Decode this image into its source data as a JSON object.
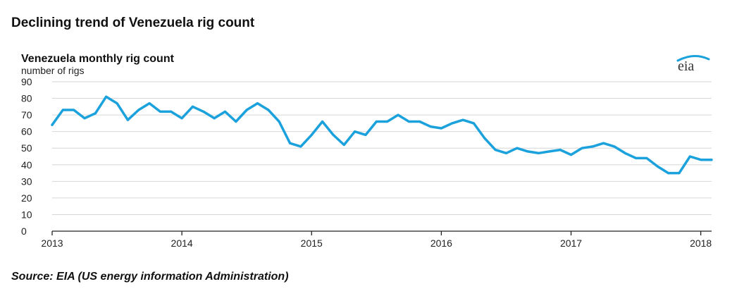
{
  "headline": "Declining trend of Venezuela rig count",
  "source": "Source:  EIA (US energy information Administration)",
  "logo_text": "eia",
  "colors": {
    "line": "#1ba1dc",
    "grid": "#d6d6d6",
    "logo_swoosh": "#1ba1dc"
  },
  "chart_data": {
    "type": "line",
    "title": "Venezuela monthly rig count",
    "ylabel": "number of rigs",
    "xlabel": "",
    "ylim": [
      0,
      90
    ],
    "yticks": [
      0,
      10,
      20,
      30,
      40,
      50,
      60,
      70,
      80,
      90
    ],
    "xticks": [
      "2013",
      "2014",
      "2015",
      "2016",
      "2017",
      "2018"
    ],
    "grid": true,
    "x": [
      "2013-01",
      "2013-02",
      "2013-03",
      "2013-04",
      "2013-05",
      "2013-06",
      "2013-07",
      "2013-08",
      "2013-09",
      "2013-10",
      "2013-11",
      "2013-12",
      "2014-01",
      "2014-02",
      "2014-03",
      "2014-04",
      "2014-05",
      "2014-06",
      "2014-07",
      "2014-08",
      "2014-09",
      "2014-10",
      "2014-11",
      "2014-12",
      "2015-01",
      "2015-02",
      "2015-03",
      "2015-04",
      "2015-05",
      "2015-06",
      "2015-07",
      "2015-08",
      "2015-09",
      "2015-10",
      "2015-11",
      "2015-12",
      "2016-01",
      "2016-02",
      "2016-03",
      "2016-04",
      "2016-05",
      "2016-06",
      "2016-07",
      "2016-08",
      "2016-09",
      "2016-10",
      "2016-11",
      "2016-12",
      "2017-01",
      "2017-02",
      "2017-03",
      "2017-04",
      "2017-05",
      "2017-06",
      "2017-07",
      "2017-08",
      "2017-09",
      "2017-10",
      "2017-11",
      "2017-12",
      "2018-01",
      "2018-02"
    ],
    "series": [
      {
        "values": [
          64,
          73,
          73,
          68,
          71,
          81,
          77,
          67,
          73,
          77,
          72,
          72,
          68,
          75,
          72,
          68,
          72,
          66,
          73,
          77,
          73,
          66,
          53,
          51,
          58,
          66,
          58,
          52,
          60,
          58,
          66,
          66,
          70,
          66,
          66,
          63,
          62,
          65,
          67,
          65,
          56,
          49,
          47,
          50,
          48,
          47,
          48,
          49,
          46,
          50,
          51,
          53,
          51,
          47,
          44,
          44,
          39,
          35,
          35,
          45,
          43,
          43
        ]
      }
    ]
  }
}
